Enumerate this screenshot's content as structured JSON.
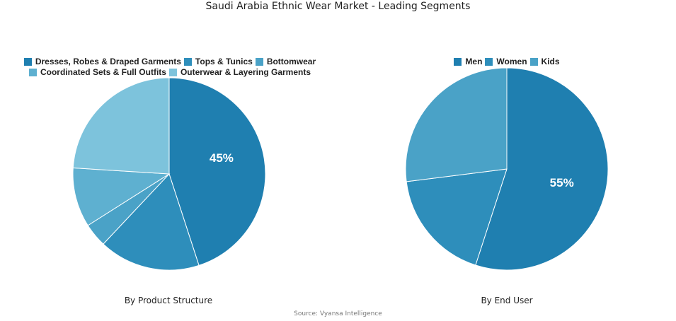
{
  "title": "Saudi Arabia Ethnic Wear Market - Leading Segments",
  "source": "Source: Vyansa Intelligence",
  "chart_data": [
    {
      "type": "pie",
      "caption": "By Product Structure",
      "slices": [
        {
          "label": "Dresses, Robes & Draped Garments",
          "value": 45,
          "color": "#1f7fb0",
          "display": "45%"
        },
        {
          "label": "Tops & Tunics",
          "value": 17,
          "color": "#2e8ebb"
        },
        {
          "label": "Bottomwear",
          "value": 4,
          "color": "#4aa2c7"
        },
        {
          "label": "Coordinated Sets & Full Outfits",
          "value": 10,
          "color": "#5eb0d0"
        },
        {
          "label": "Outerwear & Layering Garments",
          "value": 24,
          "color": "#7dc3dc"
        }
      ],
      "legend_rows": [
        [
          0,
          1,
          2
        ],
        [
          3,
          4
        ]
      ],
      "legend_position": "top"
    },
    {
      "type": "pie",
      "caption": "By End User",
      "slices": [
        {
          "label": "Men",
          "value": 55,
          "color": "#1f7fb0",
          "display": "55%"
        },
        {
          "label": "Women",
          "value": 18,
          "color": "#2e8ebb"
        },
        {
          "label": "Kids",
          "value": 27,
          "color": "#4aa2c7"
        }
      ],
      "legend_rows": [
        [
          0,
          1,
          2
        ]
      ],
      "legend_position": "top"
    }
  ]
}
